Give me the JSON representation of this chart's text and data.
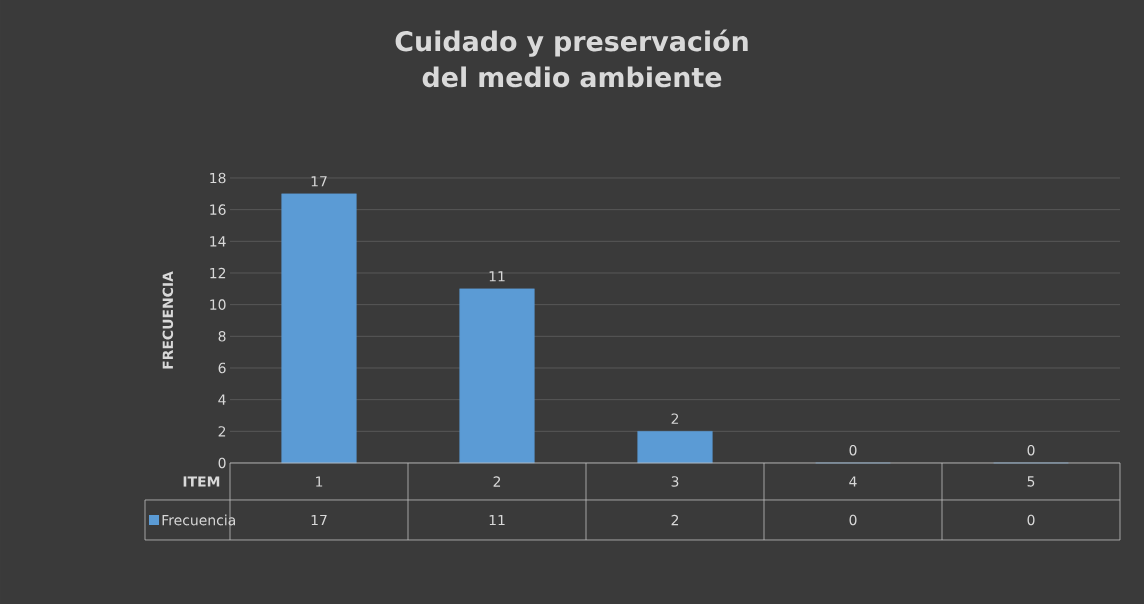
{
  "chart_data": {
    "type": "bar",
    "title": "Cuidado y preservación del medio ambiente",
    "xlabel": "ITEM",
    "ylabel": "FRECUENCIA",
    "categories": [
      "1",
      "2",
      "3",
      "4",
      "5"
    ],
    "series": [
      {
        "name": "Frecuencia",
        "color": "#5b9bd5",
        "values": [
          17,
          11,
          2,
          0,
          0
        ],
        "value_labels": [
          "17",
          "11",
          "2",
          "0",
          "0"
        ]
      }
    ],
    "ylim": [
      0,
      18
    ],
    "yticks": [
      0,
      2,
      4,
      6,
      8,
      10,
      12,
      14,
      16,
      18
    ],
    "grid": "y",
    "legend": "bottom",
    "data_labels": true
  }
}
